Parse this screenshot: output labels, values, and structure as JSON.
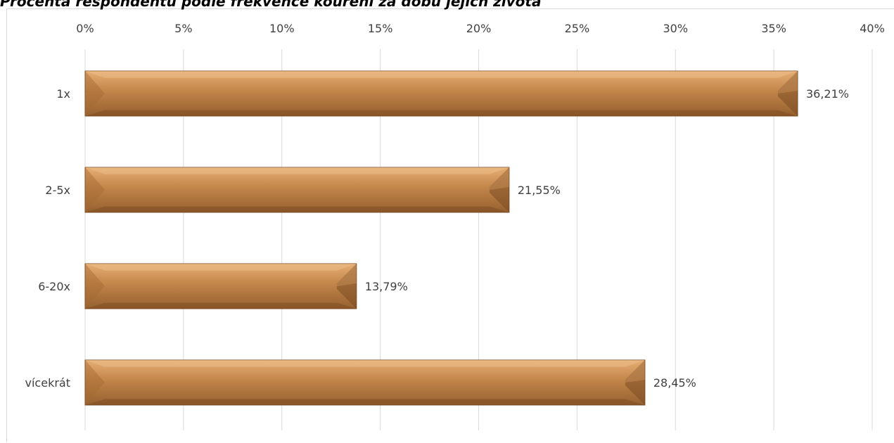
{
  "chart_data": {
    "type": "bar",
    "orientation": "horizontal",
    "title": "Procenta respondentů podle frekvence kouření za dobu jejich života",
    "categories": [
      "1x",
      "2-5x",
      "6-20x",
      "vícekrát"
    ],
    "values": [
      36.21,
      21.55,
      13.79,
      28.45
    ],
    "data_labels": [
      "36,21%",
      "21,55%",
      "13,79%",
      "28,45%"
    ],
    "x_ticks": [
      "0%",
      "5%",
      "10%",
      "15%",
      "20%",
      "25%",
      "30%",
      "35%",
      "40%"
    ],
    "xlim": [
      0,
      40
    ],
    "xlabel": "",
    "ylabel": "",
    "axis_position": "top",
    "grid": true,
    "legend": "none",
    "colors": {
      "bar_light": "#e0a56a",
      "bar_mid": "#b97a3c",
      "bar_dark": "#8a5526",
      "bar_edge": "#7a4a20",
      "grid": "#d9d9d9",
      "text": "#404040"
    }
  }
}
